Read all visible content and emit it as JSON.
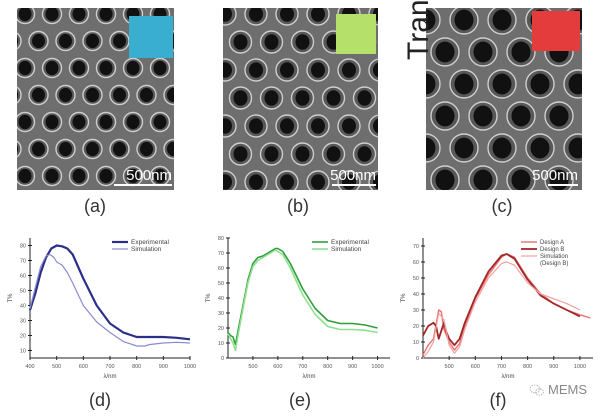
{
  "panels": {
    "a": {
      "label": "(a)",
      "scale": "500nm",
      "swatch_color": "#3aaed0"
    },
    "b": {
      "label": "(b)",
      "scale": "500nm",
      "swatch_color": "#b5e06a"
    },
    "c": {
      "label": "(c)",
      "scale": "500nm",
      "swatch_color": "#e43c3c",
      "overlay_text": "Tran"
    },
    "d": {
      "label": "(d)"
    },
    "e": {
      "label": "(e)"
    },
    "f": {
      "label": "(f)"
    }
  },
  "watermark": {
    "text": "MEMS"
  },
  "chart_data": [
    {
      "id": "d",
      "type": "line",
      "xlabel": "λ/nm",
      "ylabel": "T%",
      "xlim": [
        400,
        1000
      ],
      "ylim": [
        5,
        85
      ],
      "xticks": [
        "400",
        "500",
        "600",
        "700",
        "800",
        "900",
        "1000"
      ],
      "yticks": [
        "10",
        "20",
        "30",
        "40",
        "50",
        "60",
        "70",
        "80"
      ],
      "legend": "top-right",
      "series": [
        {
          "name": "Experimental",
          "color": "#2b2f8a",
          "width": 2.2,
          "x": [
            400,
            420,
            440,
            460,
            480,
            500,
            520,
            540,
            560,
            600,
            650,
            700,
            750,
            800,
            850,
            900,
            950,
            1000
          ],
          "y": [
            37,
            48,
            62,
            72,
            78,
            80,
            79.5,
            78,
            74,
            58,
            40,
            28,
            22,
            19,
            19,
            19,
            18.5,
            17.5
          ]
        },
        {
          "name": "Simulation",
          "color": "#8a8ad0",
          "width": 1.2,
          "x": [
            400,
            420,
            440,
            460,
            475,
            490,
            500,
            520,
            540,
            560,
            600,
            650,
            700,
            750,
            800,
            830,
            850,
            900,
            950,
            1000
          ],
          "y": [
            38,
            52,
            66,
            73,
            74,
            72,
            69,
            67,
            62,
            55,
            40,
            29,
            22,
            16,
            13,
            13,
            14,
            15,
            15.5,
            15
          ]
        }
      ]
    },
    {
      "id": "e",
      "type": "line",
      "xlabel": "λ/nm",
      "ylabel": "T%",
      "xlim": [
        400,
        1050
      ],
      "ylim": [
        0,
        80
      ],
      "xticks": [
        "500",
        "600",
        "700",
        "800",
        "900",
        "1000"
      ],
      "yticks": [
        "0",
        "10",
        "20",
        "30",
        "40",
        "50",
        "60",
        "70",
        "80"
      ],
      "legend": "top-right",
      "series": [
        {
          "name": "Experimental",
          "color": "#2e9e3a",
          "width": 1.6,
          "x": [
            400,
            410,
            420,
            430,
            440,
            460,
            480,
            500,
            520,
            540,
            560,
            580,
            590,
            600,
            620,
            650,
            700,
            750,
            800,
            850,
            900,
            950,
            1000
          ],
          "y": [
            17,
            15,
            14,
            9,
            18,
            35,
            52,
            63,
            67,
            68,
            70,
            72,
            73,
            73,
            71,
            63,
            46,
            33,
            25,
            23,
            23,
            22,
            20
          ]
        },
        {
          "name": "Simulation",
          "color": "#8fe08f",
          "width": 1.6,
          "x": [
            400,
            410,
            420,
            430,
            440,
            460,
            480,
            500,
            520,
            540,
            560,
            580,
            590,
            600,
            620,
            650,
            700,
            750,
            800,
            850,
            900,
            950,
            1000
          ],
          "y": [
            16,
            13,
            10,
            5,
            15,
            33,
            50,
            61,
            65,
            67,
            69,
            71,
            72,
            71,
            69,
            60,
            42,
            29,
            21,
            19,
            19,
            18.5,
            17
          ]
        }
      ]
    },
    {
      "id": "f",
      "type": "line",
      "xlabel": "λ/nm",
      "ylabel": "T%",
      "xlim": [
        400,
        1050
      ],
      "ylim": [
        0,
        75
      ],
      "xticks": [
        "500",
        "600",
        "700",
        "800",
        "900",
        "1000"
      ],
      "yticks": [
        "0",
        "10",
        "20",
        "30",
        "40",
        "50",
        "60",
        "70"
      ],
      "legend": "top-right",
      "series": [
        {
          "name": "Design A",
          "color": "#e87070",
          "width": 1.4,
          "x": [
            400,
            420,
            440,
            460,
            470,
            480,
            500,
            520,
            540,
            560,
            600,
            650,
            700,
            720,
            750,
            800,
            850,
            900,
            950,
            1000,
            1040
          ],
          "y": [
            2,
            8,
            12,
            30,
            29,
            18,
            10,
            5,
            9,
            20,
            37,
            52,
            63,
            65,
            63,
            50,
            40,
            34,
            30,
            27,
            25
          ]
        },
        {
          "name": "Design B",
          "color": "#a02828",
          "width": 1.8,
          "x": [
            400,
            420,
            440,
            450,
            460,
            480,
            490,
            500,
            520,
            540,
            560,
            600,
            650,
            700,
            720,
            750,
            800,
            850,
            900,
            950,
            1000
          ],
          "y": [
            14,
            20,
            22,
            20,
            12,
            22,
            16,
            12,
            8,
            12,
            22,
            38,
            54,
            64,
            65,
            62,
            49,
            39,
            34,
            30,
            26
          ]
        },
        {
          "name": "Simulation\n(Design B)",
          "color": "#f2a0a0",
          "width": 1.2,
          "x": [
            400,
            420,
            440,
            460,
            480,
            500,
            520,
            540,
            560,
            600,
            650,
            700,
            720,
            750,
            800,
            850,
            900,
            950,
            1000
          ],
          "y": [
            0,
            4,
            10,
            28,
            24,
            8,
            3,
            7,
            18,
            35,
            50,
            59,
            60,
            58,
            47,
            40,
            37,
            34,
            30
          ]
        }
      ]
    }
  ]
}
